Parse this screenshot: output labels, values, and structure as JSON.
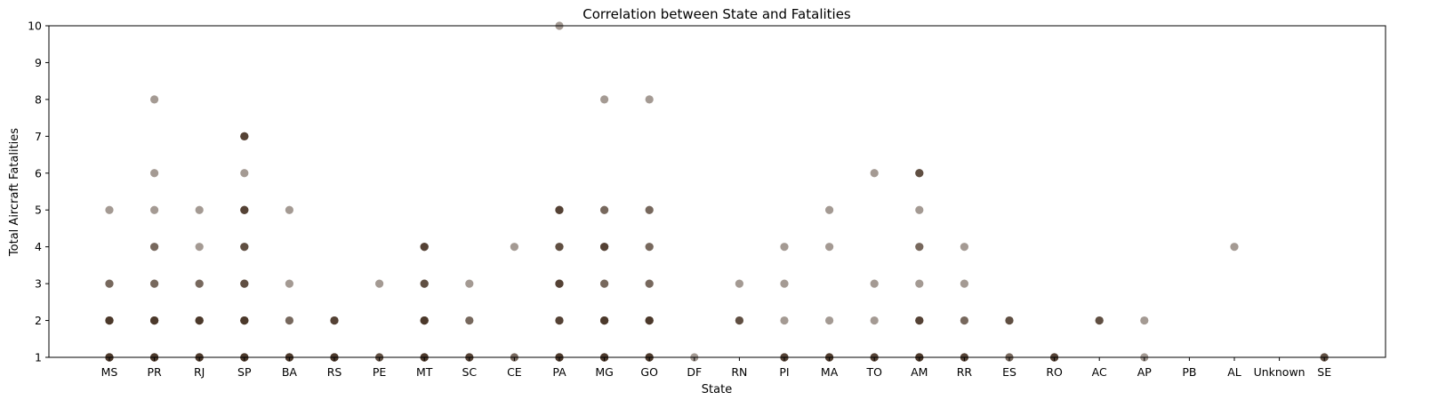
{
  "chart_data": {
    "type": "scatter",
    "title": "Correlation between State and Fatalities",
    "xlabel": "State",
    "ylabel": "Total Aircraft Fatalities",
    "ylim": [
      1,
      10
    ],
    "yticks": [
      1,
      2,
      3,
      4,
      5,
      6,
      7,
      8,
      9,
      10
    ],
    "grid": false,
    "legend": "none",
    "point_color": "#4a3628",
    "point_alpha": 0.5,
    "categories": [
      "MS",
      "PR",
      "RJ",
      "SP",
      "BA",
      "RS",
      "PE",
      "MT",
      "SC",
      "CE",
      "PA",
      "MG",
      "GO",
      "DF",
      "RN",
      "PI",
      "MA",
      "TO",
      "AM",
      "RR",
      "ES",
      "RO",
      "AC",
      "AP",
      "PB",
      "AL",
      "Unknown",
      "SE"
    ],
    "points": [
      {
        "x": "MS",
        "y": 1,
        "count": 6
      },
      {
        "x": "MS",
        "y": 2,
        "count": 6
      },
      {
        "x": "MS",
        "y": 3,
        "count": 2
      },
      {
        "x": "MS",
        "y": 5,
        "count": 1
      },
      {
        "x": "PR",
        "y": 1,
        "count": 6
      },
      {
        "x": "PR",
        "y": 2,
        "count": 6
      },
      {
        "x": "PR",
        "y": 3,
        "count": 2
      },
      {
        "x": "PR",
        "y": 4,
        "count": 2
      },
      {
        "x": "PR",
        "y": 5,
        "count": 1
      },
      {
        "x": "PR",
        "y": 6,
        "count": 1
      },
      {
        "x": "PR",
        "y": 8,
        "count": 1
      },
      {
        "x": "RJ",
        "y": 1,
        "count": 6
      },
      {
        "x": "RJ",
        "y": 2,
        "count": 6
      },
      {
        "x": "RJ",
        "y": 3,
        "count": 2
      },
      {
        "x": "RJ",
        "y": 4,
        "count": 1
      },
      {
        "x": "RJ",
        "y": 5,
        "count": 1
      },
      {
        "x": "SP",
        "y": 1,
        "count": 6
      },
      {
        "x": "SP",
        "y": 2,
        "count": 6
      },
      {
        "x": "SP",
        "y": 3,
        "count": 3
      },
      {
        "x": "SP",
        "y": 4,
        "count": 3
      },
      {
        "x": "SP",
        "y": 5,
        "count": 4
      },
      {
        "x": "SP",
        "y": 6,
        "count": 1
      },
      {
        "x": "SP",
        "y": 7,
        "count": 4
      },
      {
        "x": "BA",
        "y": 1,
        "count": 6
      },
      {
        "x": "BA",
        "y": 2,
        "count": 2
      },
      {
        "x": "BA",
        "y": 3,
        "count": 1
      },
      {
        "x": "BA",
        "y": 5,
        "count": 1
      },
      {
        "x": "RS",
        "y": 1,
        "count": 6
      },
      {
        "x": "RS",
        "y": 2,
        "count": 4
      },
      {
        "x": "PE",
        "y": 1,
        "count": 3
      },
      {
        "x": "PE",
        "y": 3,
        "count": 1
      },
      {
        "x": "MT",
        "y": 1,
        "count": 6
      },
      {
        "x": "MT",
        "y": 2,
        "count": 6
      },
      {
        "x": "MT",
        "y": 3,
        "count": 3
      },
      {
        "x": "MT",
        "y": 4,
        "count": 4
      },
      {
        "x": "SC",
        "y": 1,
        "count": 4
      },
      {
        "x": "SC",
        "y": 2,
        "count": 2
      },
      {
        "x": "SC",
        "y": 3,
        "count": 1
      },
      {
        "x": "CE",
        "y": 1,
        "count": 2
      },
      {
        "x": "CE",
        "y": 4,
        "count": 1
      },
      {
        "x": "PA",
        "y": 1,
        "count": 6
      },
      {
        "x": "PA",
        "y": 2,
        "count": 4
      },
      {
        "x": "PA",
        "y": 3,
        "count": 4
      },
      {
        "x": "PA",
        "y": 4,
        "count": 3
      },
      {
        "x": "PA",
        "y": 5,
        "count": 4
      },
      {
        "x": "PA",
        "y": 10,
        "count": 1
      },
      {
        "x": "MG",
        "y": 1,
        "count": 6
      },
      {
        "x": "MG",
        "y": 2,
        "count": 6
      },
      {
        "x": "MG",
        "y": 3,
        "count": 2
      },
      {
        "x": "MG",
        "y": 4,
        "count": 4
      },
      {
        "x": "MG",
        "y": 5,
        "count": 2
      },
      {
        "x": "MG",
        "y": 8,
        "count": 1
      },
      {
        "x": "GO",
        "y": 1,
        "count": 6
      },
      {
        "x": "GO",
        "y": 2,
        "count": 6
      },
      {
        "x": "GO",
        "y": 3,
        "count": 2
      },
      {
        "x": "GO",
        "y": 4,
        "count": 2
      },
      {
        "x": "GO",
        "y": 5,
        "count": 2
      },
      {
        "x": "GO",
        "y": 8,
        "count": 1
      },
      {
        "x": "DF",
        "y": 1,
        "count": 1
      },
      {
        "x": "RN",
        "y": 2,
        "count": 3
      },
      {
        "x": "RN",
        "y": 3,
        "count": 1
      },
      {
        "x": "PI",
        "y": 1,
        "count": 4
      },
      {
        "x": "PI",
        "y": 2,
        "count": 1
      },
      {
        "x": "PI",
        "y": 3,
        "count": 1
      },
      {
        "x": "PI",
        "y": 4,
        "count": 1
      },
      {
        "x": "MA",
        "y": 1,
        "count": 5
      },
      {
        "x": "MA",
        "y": 2,
        "count": 1
      },
      {
        "x": "MA",
        "y": 4,
        "count": 1
      },
      {
        "x": "MA",
        "y": 5,
        "count": 1
      },
      {
        "x": "TO",
        "y": 1,
        "count": 4
      },
      {
        "x": "TO",
        "y": 2,
        "count": 1
      },
      {
        "x": "TO",
        "y": 3,
        "count": 1
      },
      {
        "x": "TO",
        "y": 6,
        "count": 1
      },
      {
        "x": "AM",
        "y": 1,
        "count": 6
      },
      {
        "x": "AM",
        "y": 2,
        "count": 4
      },
      {
        "x": "AM",
        "y": 3,
        "count": 1
      },
      {
        "x": "AM",
        "y": 4,
        "count": 2
      },
      {
        "x": "AM",
        "y": 5,
        "count": 1
      },
      {
        "x": "AM",
        "y": 6,
        "count": 3
      },
      {
        "x": "RR",
        "y": 1,
        "count": 4
      },
      {
        "x": "RR",
        "y": 2,
        "count": 2
      },
      {
        "x": "RR",
        "y": 3,
        "count": 1
      },
      {
        "x": "RR",
        "y": 4,
        "count": 1
      },
      {
        "x": "ES",
        "y": 1,
        "count": 2
      },
      {
        "x": "ES",
        "y": 2,
        "count": 3
      },
      {
        "x": "RO",
        "y": 1,
        "count": 4
      },
      {
        "x": "AC",
        "y": 2,
        "count": 3
      },
      {
        "x": "AP",
        "y": 1,
        "count": 1
      },
      {
        "x": "AP",
        "y": 2,
        "count": 1
      },
      {
        "x": "AL",
        "y": 4,
        "count": 1
      },
      {
        "x": "SE",
        "y": 1,
        "count": 3
      }
    ]
  }
}
